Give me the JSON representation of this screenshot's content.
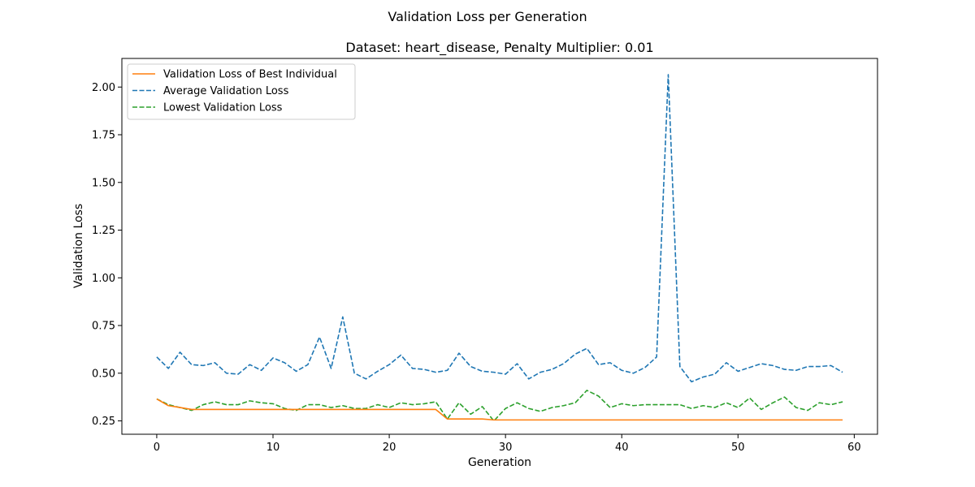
{
  "figure": {
    "suptitle": "Validation Loss per Generation"
  },
  "chart_data": {
    "type": "line",
    "title": "Dataset: heart_disease, Penalty Multiplier: 0.01",
    "xlabel": "Generation",
    "ylabel": "Validation Loss",
    "xlim": [
      -3,
      62
    ],
    "ylim": [
      0.18,
      2.15
    ],
    "xticks": [
      0,
      10,
      20,
      30,
      40,
      50,
      60
    ],
    "xtick_labels": [
      "0",
      "10",
      "20",
      "30",
      "40",
      "50",
      "60"
    ],
    "yticks": [
      0.25,
      0.5,
      0.75,
      1.0,
      1.25,
      1.5,
      1.75,
      2.0
    ],
    "ytick_labels": [
      "0.25",
      "0.50",
      "0.75",
      "1.00",
      "1.25",
      "1.50",
      "1.75",
      "2.00"
    ],
    "grid": false,
    "legend_position": "top-left",
    "x": [
      0,
      1,
      2,
      3,
      4,
      5,
      6,
      7,
      8,
      9,
      10,
      11,
      12,
      13,
      14,
      15,
      16,
      17,
      18,
      19,
      20,
      21,
      22,
      23,
      24,
      25,
      26,
      27,
      28,
      29,
      30,
      31,
      32,
      33,
      34,
      35,
      36,
      37,
      38,
      39,
      40,
      41,
      42,
      43,
      44,
      45,
      46,
      47,
      48,
      49,
      50,
      51,
      52,
      53,
      54,
      55,
      56,
      57,
      58,
      59
    ],
    "series": [
      {
        "name": "Validation Loss of Best Individual",
        "color": "#ff7f0e",
        "style": "solid",
        "values": [
          0.365,
          0.33,
          0.32,
          0.31,
          0.31,
          0.31,
          0.31,
          0.31,
          0.31,
          0.31,
          0.31,
          0.31,
          0.31,
          0.31,
          0.31,
          0.31,
          0.31,
          0.31,
          0.31,
          0.31,
          0.31,
          0.31,
          0.31,
          0.31,
          0.31,
          0.26,
          0.26,
          0.26,
          0.26,
          0.255,
          0.255,
          0.255,
          0.255,
          0.255,
          0.255,
          0.255,
          0.255,
          0.255,
          0.255,
          0.255,
          0.255,
          0.255,
          0.255,
          0.255,
          0.255,
          0.255,
          0.255,
          0.255,
          0.255,
          0.255,
          0.255,
          0.255,
          0.255,
          0.255,
          0.255,
          0.255,
          0.255,
          0.255,
          0.255,
          0.255
        ]
      },
      {
        "name": "Average Validation Loss",
        "color": "#1f77b4",
        "style": "dashed",
        "values": [
          0.585,
          0.525,
          0.61,
          0.545,
          0.54,
          0.555,
          0.5,
          0.495,
          0.545,
          0.515,
          0.58,
          0.555,
          0.51,
          0.545,
          0.69,
          0.525,
          0.795,
          0.5,
          0.47,
          0.51,
          0.545,
          0.595,
          0.525,
          0.52,
          0.505,
          0.515,
          0.605,
          0.535,
          0.51,
          0.505,
          0.495,
          0.55,
          0.47,
          0.505,
          0.52,
          0.55,
          0.6,
          0.63,
          0.545,
          0.555,
          0.515,
          0.5,
          0.53,
          0.585,
          2.065,
          0.535,
          0.455,
          0.48,
          0.495,
          0.555,
          0.51,
          0.53,
          0.55,
          0.54,
          0.52,
          0.515,
          0.535,
          0.535,
          0.54,
          0.505
        ]
      },
      {
        "name": "Lowest Validation Loss",
        "color": "#2ca02c",
        "style": "dashed",
        "values": [
          0.365,
          0.335,
          0.32,
          0.305,
          0.335,
          0.35,
          0.335,
          0.335,
          0.355,
          0.345,
          0.34,
          0.315,
          0.305,
          0.335,
          0.335,
          0.32,
          0.33,
          0.315,
          0.315,
          0.335,
          0.32,
          0.345,
          0.335,
          0.34,
          0.35,
          0.26,
          0.345,
          0.285,
          0.325,
          0.25,
          0.315,
          0.345,
          0.315,
          0.3,
          0.32,
          0.33,
          0.345,
          0.41,
          0.38,
          0.32,
          0.34,
          0.33,
          0.335,
          0.335,
          0.335,
          0.335,
          0.315,
          0.33,
          0.32,
          0.345,
          0.32,
          0.37,
          0.31,
          0.345,
          0.375,
          0.32,
          0.305,
          0.345,
          0.335,
          0.35
        ]
      }
    ]
  }
}
